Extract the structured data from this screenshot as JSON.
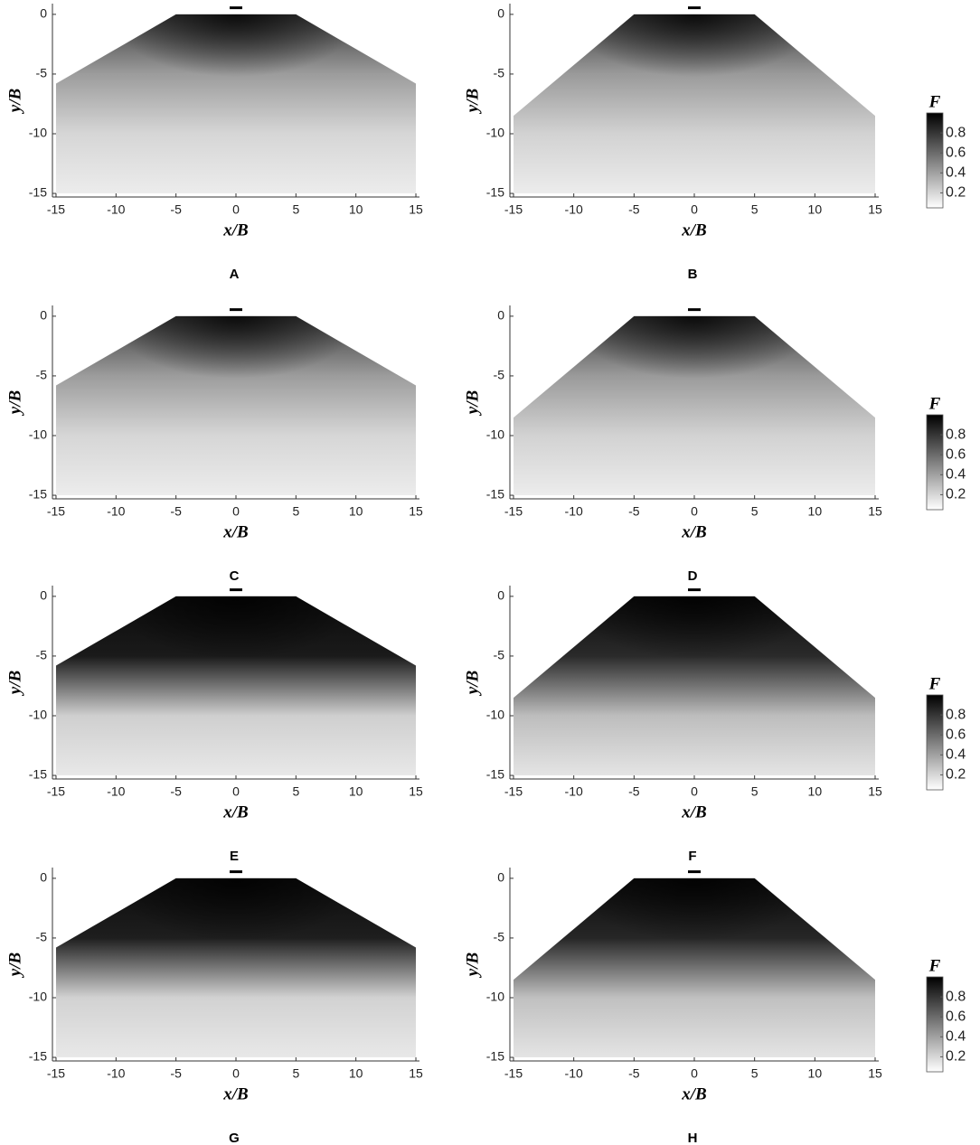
{
  "chart_data": [
    {
      "type": "contour",
      "panel_label": "A",
      "x_label": "x/B",
      "y_label": "y/B",
      "xlim": [
        -15.3,
        15.3
      ],
      "ylim": [
        -15.3,
        0.9
      ],
      "xticks": [
        -15,
        -10,
        -5,
        0,
        5,
        10,
        15
      ],
      "yticks": [
        -15,
        -10,
        -5,
        0
      ],
      "domain_x": [
        -15,
        -5,
        5,
        15,
        15,
        -15
      ],
      "domain_y": [
        -5.8,
        0,
        0,
        -5.8,
        -15,
        -15
      ],
      "colors": [
        "#3a3a3a",
        "#9c9c9c",
        "#d6d6d6",
        "#ececec"
      ]
    },
    {
      "type": "contour",
      "panel_label": "B",
      "x_label": "x/B",
      "y_label": "y/B",
      "xlim": [
        -15.3,
        15.3
      ],
      "ylim": [
        -15.3,
        0.9
      ],
      "xticks": [
        -15,
        -10,
        -5,
        0,
        5,
        10,
        15
      ],
      "yticks": [
        -15,
        -10,
        -5,
        0
      ],
      "domain_x": [
        -15,
        -5,
        5,
        15,
        15,
        -15
      ],
      "domain_y": [
        -8.5,
        0,
        0,
        -8.5,
        -15,
        -15
      ],
      "colors": [
        "#3a3a3a",
        "#9a9a9a",
        "#d2d2d2",
        "#ececec"
      ],
      "colorbar": {
        "title": "F",
        "clim": [
          0.05,
          1
        ],
        "ticks": [
          0.2,
          0.4,
          0.6,
          0.8
        ],
        "colors": [
          "#ffffff",
          "#000000"
        ]
      }
    },
    {
      "type": "contour",
      "panel_label": "C",
      "x_label": "x/B",
      "y_label": "y/B",
      "xlim": [
        -15.3,
        15.3
      ],
      "ylim": [
        -15.3,
        0.9
      ],
      "xticks": [
        -15,
        -10,
        -5,
        0,
        5,
        10,
        15
      ],
      "yticks": [
        -15,
        -10,
        -5,
        0
      ],
      "domain_x": [
        -15,
        -5,
        5,
        15,
        15,
        -15
      ],
      "domain_y": [
        -5.8,
        0,
        0,
        -5.8,
        -15,
        -15
      ],
      "colors": [
        "#3a3a3a",
        "#9c9c9c",
        "#d6d6d6",
        "#ececec"
      ]
    },
    {
      "type": "contour",
      "panel_label": "D",
      "x_label": "x/B",
      "y_label": "y/B",
      "xlim": [
        -15.3,
        15.3
      ],
      "ylim": [
        -15.3,
        0.9
      ],
      "xticks": [
        -15,
        -10,
        -5,
        0,
        5,
        10,
        15
      ],
      "yticks": [
        -15,
        -10,
        -5,
        0
      ],
      "domain_x": [
        -15,
        -5,
        5,
        15,
        15,
        -15
      ],
      "domain_y": [
        -8.5,
        0,
        0,
        -8.5,
        -15,
        -15
      ],
      "colors": [
        "#3a3a3a",
        "#9a9a9a",
        "#d2d2d2",
        "#ececec"
      ],
      "colorbar": {
        "title": "F",
        "clim": [
          0.05,
          1
        ],
        "ticks": [
          0.2,
          0.4,
          0.6,
          0.8
        ],
        "colors": [
          "#ffffff",
          "#000000"
        ]
      }
    },
    {
      "type": "contour",
      "panel_label": "E",
      "x_label": "x/B",
      "y_label": "y/B",
      "xlim": [
        -15.3,
        15.3
      ],
      "ylim": [
        -15.3,
        0.9
      ],
      "xticks": [
        -15,
        -10,
        -5,
        0,
        5,
        10,
        15
      ],
      "yticks": [
        -15,
        -10,
        -5,
        0
      ],
      "domain_x": [
        -15,
        -5,
        5,
        15,
        15,
        -15
      ],
      "domain_y": [
        -5.8,
        0,
        0,
        -5.8,
        -15,
        -15
      ],
      "colors": [
        "#0c0c0c",
        "#1a1a1a",
        "#cfcfcf",
        "#e8e8e8"
      ]
    },
    {
      "type": "contour",
      "panel_label": "F",
      "x_label": "x/B",
      "y_label": "y/B",
      "xlim": [
        -15.3,
        15.3
      ],
      "ylim": [
        -15.3,
        0.9
      ],
      "xticks": [
        -15,
        -10,
        -5,
        0,
        5,
        10,
        15
      ],
      "yticks": [
        -15,
        -10,
        -5,
        0
      ],
      "domain_x": [
        -15,
        -5,
        5,
        15,
        15,
        -15
      ],
      "domain_y": [
        -8.5,
        0,
        0,
        -8.5,
        -15,
        -15
      ],
      "colors": [
        "#0c0c0c",
        "#2a2a2a",
        "#bdbdbd",
        "#e4e4e4"
      ],
      "colorbar": {
        "title": "F",
        "clim": [
          0.05,
          1
        ],
        "ticks": [
          0.2,
          0.4,
          0.6,
          0.8
        ],
        "colors": [
          "#ffffff",
          "#000000"
        ]
      }
    },
    {
      "type": "contour",
      "panel_label": "G",
      "x_label": "x/B",
      "y_label": "y/B",
      "xlim": [
        -15.3,
        15.3
      ],
      "ylim": [
        -15.3,
        0.9
      ],
      "xticks": [
        -15,
        -10,
        -5,
        0,
        5,
        10,
        15
      ],
      "yticks": [
        -15,
        -10,
        -5,
        0
      ],
      "domain_x": [
        -15,
        -5,
        5,
        15,
        15,
        -15
      ],
      "domain_y": [
        -5.8,
        0,
        0,
        -5.8,
        -15,
        -15
      ],
      "colors": [
        "#0c0c0c",
        "#1e1e1e",
        "#d2d2d2",
        "#e8e8e8"
      ]
    },
    {
      "type": "contour",
      "panel_label": "H",
      "x_label": "x/B",
      "y_label": "y/B",
      "xlim": [
        -15.3,
        15.3
      ],
      "ylim": [
        -15.3,
        0.9
      ],
      "xticks": [
        -15,
        -10,
        -5,
        0,
        5,
        10,
        15
      ],
      "yticks": [
        -15,
        -10,
        -5,
        0
      ],
      "domain_x": [
        -15,
        -5,
        5,
        15,
        15,
        -15
      ],
      "domain_y": [
        -8.5,
        0,
        0,
        -8.5,
        -15,
        -15
      ],
      "colors": [
        "#0c0c0c",
        "#262626",
        "#c0c0c0",
        "#e4e4e4"
      ],
      "colorbar": {
        "title": "F",
        "clim": [
          0.05,
          1
        ],
        "ticks": [
          0.2,
          0.4,
          0.6,
          0.8
        ],
        "colors": [
          "#ffffff",
          "#000000"
        ]
      }
    }
  ]
}
